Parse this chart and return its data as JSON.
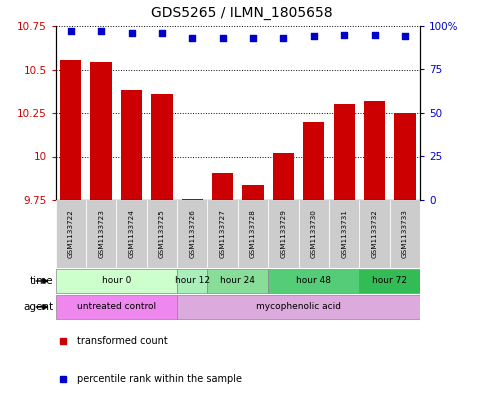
{
  "title": "GDS5265 / ILMN_1805658",
  "samples": [
    "GSM1133722",
    "GSM1133723",
    "GSM1133724",
    "GSM1133725",
    "GSM1133726",
    "GSM1133727",
    "GSM1133728",
    "GSM1133729",
    "GSM1133730",
    "GSM1133731",
    "GSM1133732",
    "GSM1133733"
  ],
  "bar_values": [
    10.555,
    10.545,
    10.385,
    10.36,
    9.758,
    9.905,
    9.835,
    10.02,
    10.2,
    10.3,
    10.32,
    10.25
  ],
  "dot_values": [
    97,
    97,
    96,
    96,
    93,
    93,
    93,
    93,
    94,
    95,
    95,
    94
  ],
  "ylim_left": [
    9.75,
    10.75
  ],
  "ylim_right": [
    0,
    100
  ],
  "yticks_left": [
    9.75,
    10.0,
    10.25,
    10.5,
    10.75
  ],
  "ytick_labels_left": [
    "9.75",
    "10",
    "10.25",
    "10.5",
    "10.75"
  ],
  "yticks_right": [
    0,
    25,
    50,
    75,
    100
  ],
  "ytick_labels_right": [
    "0",
    "25",
    "50",
    "75",
    "100%"
  ],
  "bar_color": "#cc0000",
  "dot_color": "#0000cc",
  "bar_width": 0.7,
  "time_groups": [
    {
      "label": "hour 0",
      "start": 0,
      "end": 3,
      "color": "#ccffcc"
    },
    {
      "label": "hour 12",
      "start": 4,
      "end": 4,
      "color": "#aaeebb"
    },
    {
      "label": "hour 24",
      "start": 5,
      "end": 6,
      "color": "#88dd99"
    },
    {
      "label": "hour 48",
      "start": 7,
      "end": 9,
      "color": "#55cc77"
    },
    {
      "label": "hour 72",
      "start": 10,
      "end": 11,
      "color": "#33bb55"
    }
  ],
  "agent_groups": [
    {
      "label": "untreated control",
      "start": 0,
      "end": 3,
      "color": "#ee88ee"
    },
    {
      "label": "mycophenolic acid",
      "start": 4,
      "end": 11,
      "color": "#ddaadd"
    }
  ],
  "legend_items": [
    {
      "label": "transformed count",
      "color": "#cc0000"
    },
    {
      "label": "percentile rank within the sample",
      "color": "#0000cc"
    }
  ],
  "base_value": 9.75,
  "left_tick_color": "#cc0000",
  "right_tick_color": "#0000cc",
  "sample_box_color": "#cccccc"
}
